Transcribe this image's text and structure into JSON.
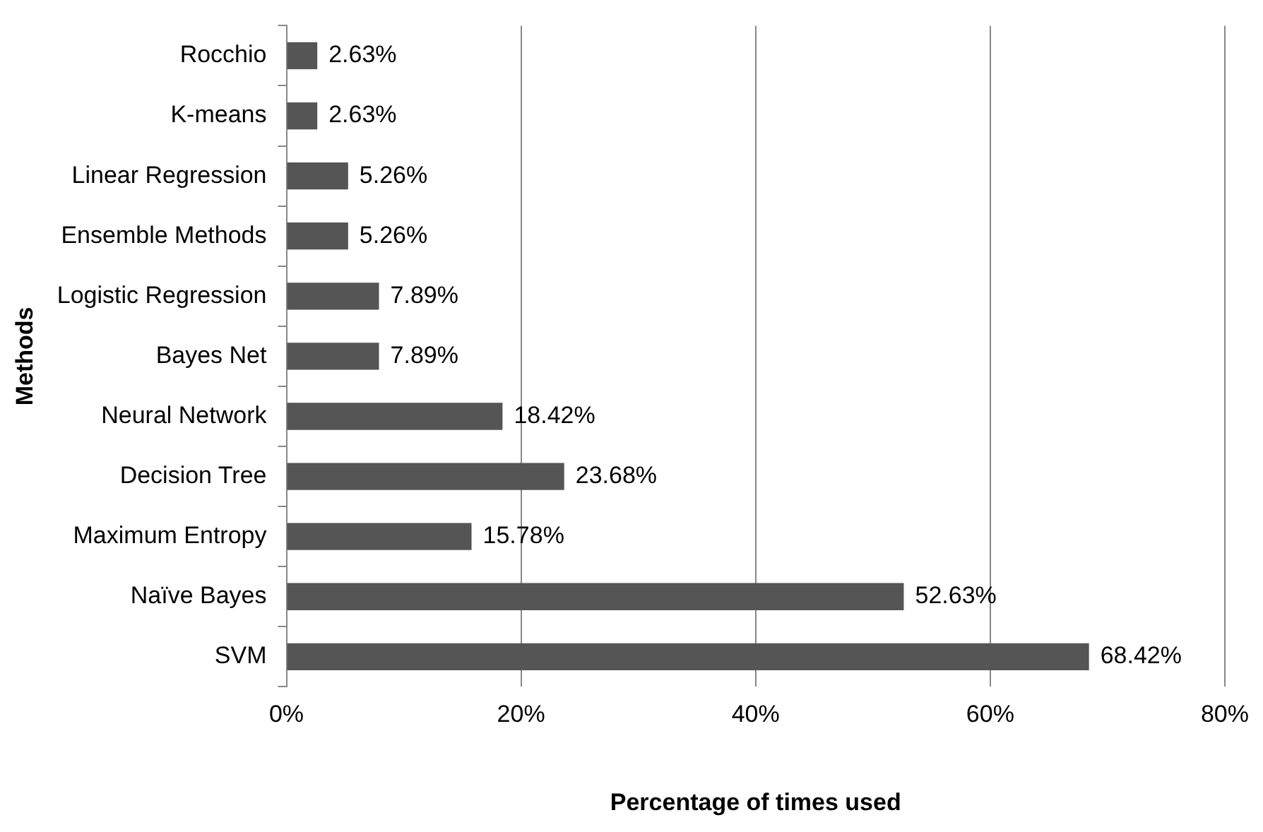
{
  "chart_data": {
    "type": "bar",
    "orientation": "horizontal",
    "xlabel": "Percentage of times used",
    "ylabel": "Methods",
    "categories": [
      "Rocchio",
      "K-means",
      "Linear Regression",
      "Ensemble Methods",
      "Logistic Regression",
      "Bayes Net",
      "Neural Network",
      "Decision Tree",
      "Maximum Entropy",
      "Naïve Bayes",
      "SVM"
    ],
    "values": [
      2.63,
      2.63,
      5.26,
      5.26,
      7.89,
      7.89,
      18.42,
      23.68,
      15.78,
      52.63,
      68.42
    ],
    "value_labels": [
      "2.63%",
      "2.63%",
      "5.26%",
      "5.26%",
      "7.89%",
      "7.89%",
      "18.42%",
      "23.68%",
      "15.78%",
      "52.63%",
      "68.42%"
    ],
    "color": "#555555",
    "xlim": [
      0,
      80
    ],
    "xticks": [
      {
        "value": 0,
        "label": "0%"
      },
      {
        "value": 20,
        "label": "20%"
      },
      {
        "value": 40,
        "label": "40%"
      },
      {
        "value": 60,
        "label": "60%"
      },
      {
        "value": 80,
        "label": "80%"
      }
    ],
    "grid": "x",
    "legend": false
  }
}
